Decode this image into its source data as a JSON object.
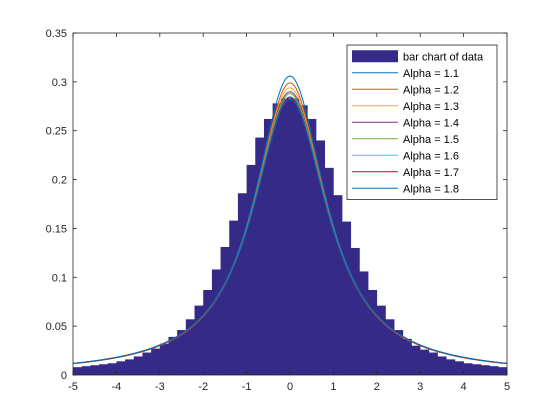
{
  "chart_data": {
    "type": "bar",
    "title": "",
    "xlabel": "",
    "ylabel": "",
    "xlim": [
      -5,
      5
    ],
    "ylim": [
      0,
      0.35
    ],
    "x_ticks": [
      "-5",
      "-4",
      "-3",
      "-2",
      "-1",
      "0",
      "1",
      "2",
      "3",
      "4",
      "5"
    ],
    "y_ticks": [
      "0",
      "0.05",
      "0.1",
      "0.15",
      "0.2",
      "0.25",
      "0.3",
      "0.35"
    ],
    "grid": false,
    "legend_position": "top-right",
    "bar_color": "#352A87",
    "histogram": {
      "name": "bar chart of data",
      "bin_centers": [
        -4.9,
        -4.7,
        -4.5,
        -4.3,
        -4.1,
        -3.9,
        -3.7,
        -3.5,
        -3.3,
        -3.1,
        -2.9,
        -2.7,
        -2.5,
        -2.3,
        -2.1,
        -1.9,
        -1.7,
        -1.5,
        -1.3,
        -1.1,
        -0.9,
        -0.7,
        -0.5,
        -0.3,
        -0.1,
        0.1,
        0.3,
        0.5,
        0.7,
        0.9,
        1.1,
        1.3,
        1.5,
        1.7,
        1.9,
        2.1,
        2.3,
        2.5,
        2.7,
        2.9,
        3.1,
        3.3,
        3.5,
        3.7,
        3.9,
        4.1,
        4.3,
        4.5,
        4.7,
        4.9
      ],
      "values": [
        0.008,
        0.009,
        0.01,
        0.011,
        0.012,
        0.014,
        0.016,
        0.019,
        0.023,
        0.027,
        0.032,
        0.039,
        0.046,
        0.057,
        0.071,
        0.087,
        0.108,
        0.131,
        0.158,
        0.186,
        0.215,
        0.243,
        0.262,
        0.278,
        0.283,
        0.283,
        0.276,
        0.262,
        0.24,
        0.212,
        0.184,
        0.157,
        0.13,
        0.106,
        0.087,
        0.071,
        0.057,
        0.046,
        0.037,
        0.03,
        0.026,
        0.023,
        0.019,
        0.016,
        0.014,
        0.012,
        0.011,
        0.01,
        0.009,
        0.008
      ]
    },
    "series": [
      {
        "name": "Alpha = 1.1",
        "color": "#0072BD",
        "peak": 0.306,
        "width": 1.0
      },
      {
        "name": "Alpha = 1.2",
        "color": "#D95319",
        "peak": 0.299,
        "width": 1.0
      },
      {
        "name": "Alpha = 1.3",
        "color": "#EDB120",
        "peak": 0.294,
        "width": 1.02
      },
      {
        "name": "Alpha = 1.4",
        "color": "#7E2F8E",
        "peak": 0.29,
        "width": 1.03
      },
      {
        "name": "Alpha = 1.5",
        "color": "#77AC30",
        "peak": 0.288,
        "width": 1.03
      },
      {
        "name": "Alpha = 1.6",
        "color": "#4DBEEE",
        "peak": 0.285,
        "width": 1.04
      },
      {
        "name": "Alpha = 1.7",
        "color": "#A2142F",
        "peak": 0.284,
        "width": 1.04
      },
      {
        "name": "Alpha = 1.8",
        "color": "#0072BD",
        "peak": 0.282,
        "width": 1.05
      }
    ]
  }
}
